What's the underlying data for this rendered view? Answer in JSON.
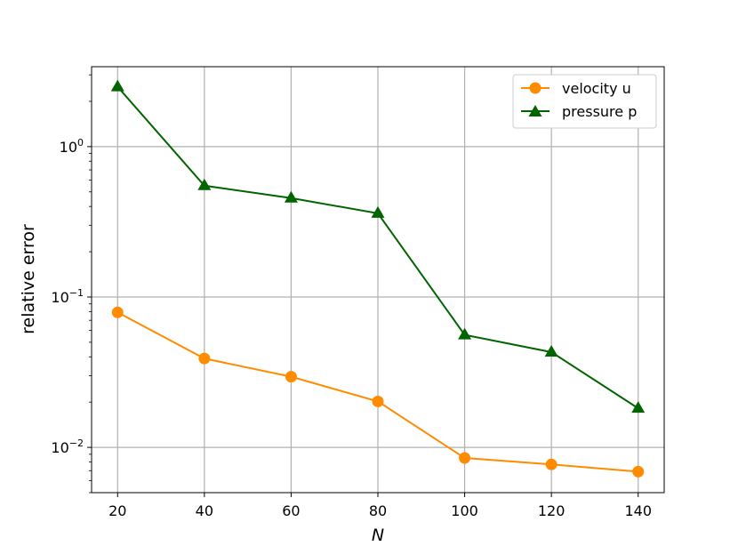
{
  "chart_data": {
    "type": "line",
    "title": "",
    "xlabel": "N",
    "ylabel": "relative error",
    "x": [
      20,
      40,
      60,
      80,
      100,
      120,
      140
    ],
    "x_ticks": [
      "20",
      "40",
      "60",
      "80",
      "100",
      "120",
      "140"
    ],
    "yscale": "log",
    "ylim": [
      0.005,
      3.4
    ],
    "y_ticks": [
      {
        "value": 0.01,
        "base": "10",
        "exp": "−2"
      },
      {
        "value": 0.1,
        "base": "10",
        "exp": "−1"
      },
      {
        "value": 1,
        "base": "10",
        "exp": "0"
      }
    ],
    "grid": true,
    "legend_position": "upper right",
    "series": [
      {
        "name": "velocity u",
        "color": "#ff8c00",
        "marker": "circle",
        "values": [
          0.079,
          0.039,
          0.0295,
          0.0202,
          0.0085,
          0.0077,
          0.0069
        ]
      },
      {
        "name": "pressure p",
        "color": "#006400",
        "marker": "triangle",
        "values": [
          2.5,
          0.55,
          0.455,
          0.36,
          0.056,
          0.043,
          0.0182
        ]
      }
    ]
  }
}
